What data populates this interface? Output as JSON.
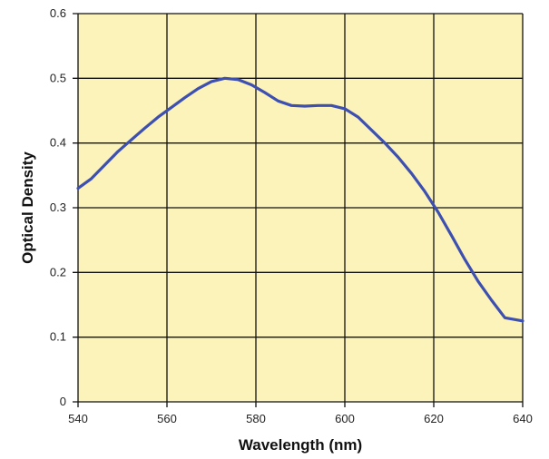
{
  "chart_data": {
    "type": "line",
    "title": "",
    "xlabel": "Wavelength (nm)",
    "ylabel": "Optical Density",
    "xlim": [
      540,
      640
    ],
    "ylim": [
      0,
      0.6
    ],
    "x_ticks": [
      "540",
      "560",
      "580",
      "600",
      "620",
      "640"
    ],
    "y_ticks": [
      "0",
      "0.1",
      "0.2",
      "0.3",
      "0.4",
      "0.5",
      "0.6"
    ],
    "grid": true,
    "legend": "none",
    "series": [
      {
        "color": "#3d4fb0",
        "x": [
          540,
          543,
          546,
          549,
          552,
          555,
          558,
          561,
          564,
          567,
          570,
          573,
          576,
          579,
          582,
          585,
          588,
          591,
          594,
          597,
          600,
          603,
          606,
          609,
          612,
          615,
          618,
          621,
          624,
          627,
          630,
          633,
          636,
          640
        ],
        "y": [
          0.33,
          0.345,
          0.366,
          0.387,
          0.405,
          0.423,
          0.44,
          0.455,
          0.47,
          0.484,
          0.495,
          0.5,
          0.498,
          0.49,
          0.478,
          0.465,
          0.458,
          0.457,
          0.458,
          0.458,
          0.453,
          0.44,
          0.42,
          0.4,
          0.378,
          0.353,
          0.325,
          0.293,
          0.257,
          0.22,
          0.186,
          0.157,
          0.13,
          0.125
        ]
      }
    ]
  },
  "colors": {
    "plot_background": "#fbf3b9",
    "grid": "#111111",
    "line": "#3d4fb0"
  }
}
